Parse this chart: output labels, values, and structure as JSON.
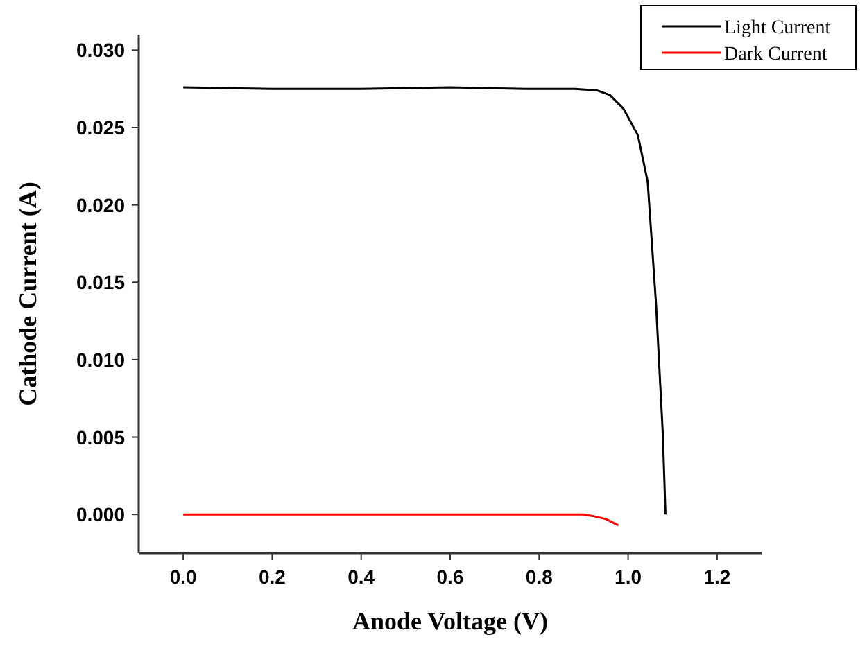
{
  "chart_data": {
    "type": "line",
    "xlabel": "Anode Voltage (V)",
    "ylabel": "Cathode Current (A)",
    "xlim": [
      -0.1,
      1.3
    ],
    "xticks": [
      {
        "value": 0,
        "label": "0.0"
      },
      0.2,
      0.4,
      0.6,
      0.8,
      {
        "value": 1,
        "label": "1.0"
      },
      1.2
    ],
    "ylim": [
      -0.0025,
      0.031
    ],
    "yticks": [
      {
        "value": 0,
        "label": "0.000"
      },
      0.005,
      {
        "value": 0.01,
        "label": "0.010"
      },
      0.015,
      {
        "value": 0.02,
        "label": "0.020"
      },
      0.025,
      {
        "value": 0.03,
        "label": "0.030"
      }
    ],
    "legend": "top right",
    "grid": false,
    "series": [
      {
        "name": "Light Current",
        "color": "#000000",
        "x": [
          0,
          0.2,
          0.4,
          0.6,
          0.77,
          0.88,
          0.93,
          0.959,
          0.99,
          1.022,
          1.044,
          1.063,
          1.078,
          1.084
        ],
        "values": [
          0.0276,
          0.0275,
          0.0275,
          0.0276,
          0.0275,
          0.0275,
          0.0274,
          0.0271,
          0.0262,
          0.0245,
          0.0215,
          0.0135,
          0.0052,
          0
        ]
      },
      {
        "name": "Dark Current",
        "color": "#ff0000",
        "x": [
          0,
          0.3,
          0.6,
          0.9,
          0.92,
          0.95,
          0.978
        ],
        "values": [
          0,
          0,
          0,
          0,
          -0.0001,
          -0.0003,
          -0.0007
        ]
      }
    ]
  }
}
